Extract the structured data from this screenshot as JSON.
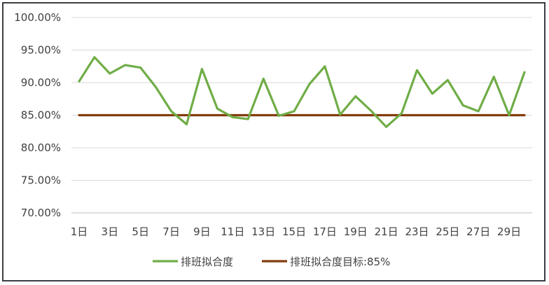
{
  "chart_data": {
    "type": "line",
    "title": "",
    "xlabel": "",
    "ylabel": "",
    "categories": [
      "1日",
      "2日",
      "3日",
      "4日",
      "5日",
      "6日",
      "7日",
      "8日",
      "9日",
      "10日",
      "11日",
      "12日",
      "13日",
      "14日",
      "15日",
      "16日",
      "17日",
      "18日",
      "19日",
      "20日",
      "21日",
      "22日",
      "23日",
      "24日",
      "25日",
      "26日",
      "27日",
      "28日",
      "29日",
      "30日"
    ],
    "x_tick_labels": [
      "1日",
      "3日",
      "5日",
      "7日",
      "9日",
      "11日",
      "13日",
      "15日",
      "17日",
      "19日",
      "21日",
      "23日",
      "25日",
      "27日",
      "29日"
    ],
    "y_tick_labels": [
      "100.00%",
      "95.00%",
      "90.00%",
      "85.00%",
      "80.00%",
      "75.00%",
      "70.00%"
    ],
    "ylim": [
      70,
      100
    ],
    "y_unit": "%",
    "grid": true,
    "legend_position": "bottom",
    "series": [
      {
        "name": "排班拟合度",
        "color": "#70ad47",
        "values": [
          90.2,
          93.9,
          91.4,
          92.7,
          92.3,
          89.3,
          85.6,
          83.6,
          92.1,
          86.0,
          84.7,
          84.4,
          90.6,
          84.9,
          85.6,
          89.8,
          92.5,
          85.1,
          87.9,
          85.7,
          83.2,
          85.3,
          91.9,
          88.3,
          90.4,
          86.5,
          85.6,
          90.9,
          85.0,
          91.6
        ]
      },
      {
        "name": "排班拟合度目标:85%",
        "color": "#843c0c",
        "values": [
          85,
          85,
          85,
          85,
          85,
          85,
          85,
          85,
          85,
          85,
          85,
          85,
          85,
          85,
          85,
          85,
          85,
          85,
          85,
          85,
          85,
          85,
          85,
          85,
          85,
          85,
          85,
          85,
          85,
          85
        ]
      }
    ]
  }
}
